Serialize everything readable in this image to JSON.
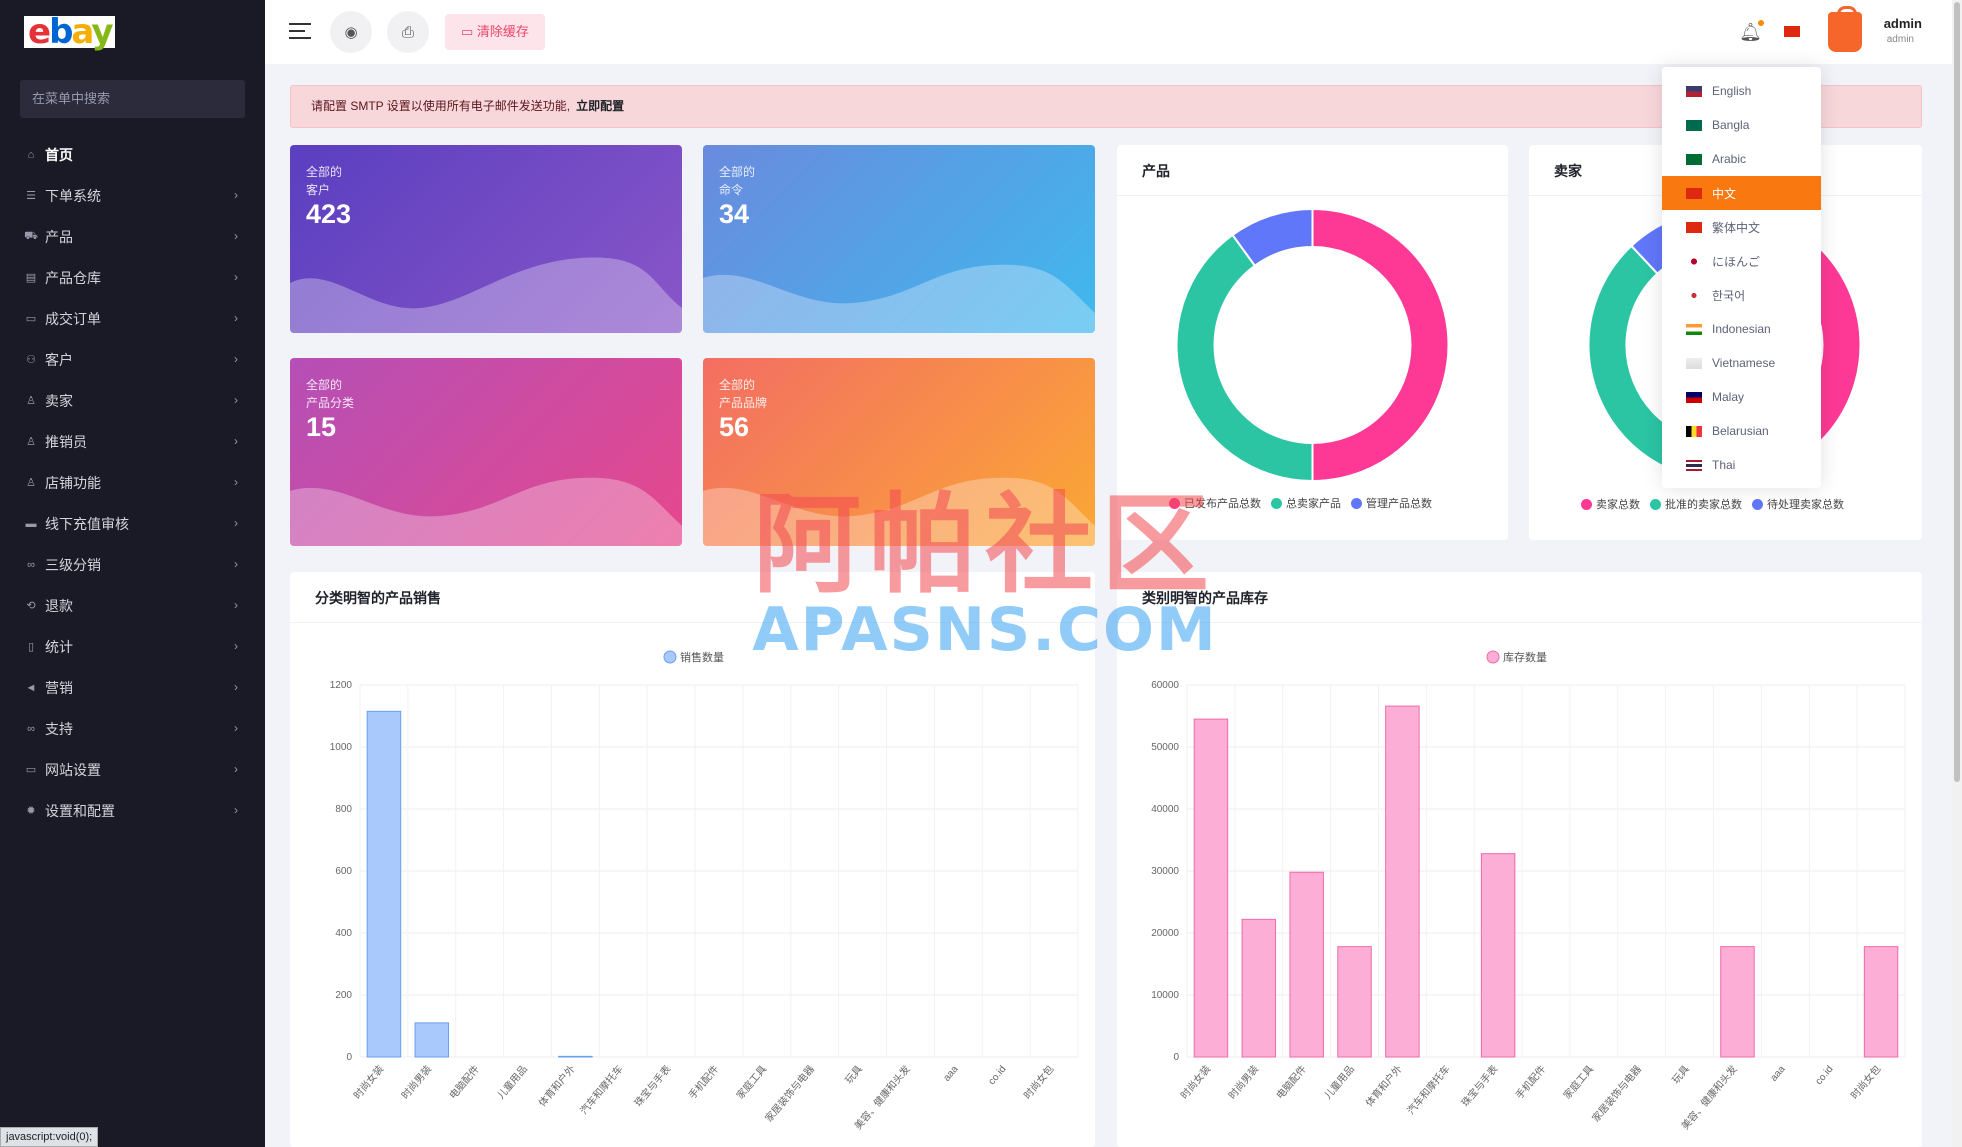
{
  "brand": {
    "logo_letters": [
      "e",
      "b",
      "a",
      "y"
    ]
  },
  "sidebar": {
    "search_placeholder": "在菜单中搜索",
    "items": [
      {
        "label": "首页",
        "icon": "home-icon"
      },
      {
        "label": "下单系统",
        "icon": "list-icon"
      },
      {
        "label": "产品",
        "icon": "cart-icon"
      },
      {
        "label": "产品仓库",
        "icon": "warehouse-icon"
      },
      {
        "label": "成交订单",
        "icon": "ticket-icon"
      },
      {
        "label": "客户",
        "icon": "users-icon"
      },
      {
        "label": "卖家",
        "icon": "user-icon"
      },
      {
        "label": "推销员",
        "icon": "user-icon"
      },
      {
        "label": "店铺功能",
        "icon": "user-icon"
      },
      {
        "label": "线下充值审核",
        "icon": "card-icon"
      },
      {
        "label": "三级分销",
        "icon": "link-icon"
      },
      {
        "label": "退款",
        "icon": "refund-icon"
      },
      {
        "label": "统计",
        "icon": "file-icon"
      },
      {
        "label": "营销",
        "icon": "megaphone-icon"
      },
      {
        "label": "支持",
        "icon": "link-icon"
      },
      {
        "label": "网站设置",
        "icon": "monitor-icon"
      },
      {
        "label": "设置和配置",
        "icon": "gear-icon"
      }
    ]
  },
  "statusbar": {
    "text": "javascript:void(0);"
  },
  "topbar": {
    "clear_cache": "清除缓存",
    "user_name": "admin",
    "user_role": "admin"
  },
  "alert": {
    "text": "请配置 SMTP 设置以使用所有电子邮件发送功能,",
    "link": "立即配置"
  },
  "stats": [
    {
      "line1": "全部的",
      "line2": "客户",
      "value": "423"
    },
    {
      "line1": "全部的",
      "line2": "命令",
      "value": "34"
    },
    {
      "line1": "全部的",
      "line2": "产品分类",
      "value": "15"
    },
    {
      "line1": "全部的",
      "line2": "产品品牌",
      "value": "56"
    }
  ],
  "products_card": {
    "title": "产品",
    "legend": [
      "已发布产品总数",
      "总卖家产品",
      "管理产品总数"
    ]
  },
  "sellers_card": {
    "title": "卖家",
    "legend": [
      "卖家总数",
      "批准的卖家总数",
      "待处理卖家总数"
    ]
  },
  "sales_card": {
    "title": "分类明智的产品销售"
  },
  "stock_card": {
    "title": "类别明智的产品库存"
  },
  "languages": {
    "items": [
      "English",
      "Bangla",
      "Arabic",
      "中文",
      "繁体中文",
      "にほんご",
      "한국어",
      "Indonesian",
      "Vietnamese",
      "Malay",
      "Belarusian",
      "Thai"
    ],
    "active": 3
  },
  "watermark": {
    "line1": "阿帕社区",
    "line2": "APASNS.COM"
  },
  "colors": {
    "pink": "#fd3995",
    "teal": "#2bc5a4",
    "blue": "#6177f9",
    "sales_bar": "#a9c8fb",
    "stock_bar": "#fcaed6"
  },
  "chart_data": [
    {
      "type": "pie",
      "title": "产品",
      "labels": [
        "已发布产品总数",
        "总卖家产品",
        "管理产品总数"
      ],
      "values": [
        50,
        40,
        10
      ]
    },
    {
      "type": "pie",
      "title": "卖家",
      "labels": [
        "卖家总数",
        "批准的卖家总数",
        "待处理卖家总数"
      ],
      "values": [
        50,
        38,
        12
      ]
    },
    {
      "type": "bar",
      "title": "分类明智的产品销售",
      "categories": [
        "时尚女装",
        "时尚男装",
        "电脑配件",
        "儿童用品",
        "体育和户外",
        "汽车和摩托车",
        "珠宝与手表",
        "手机配件",
        "家庭工具",
        "家居装饰与电器",
        "玩具",
        "美容、健康和头发",
        "aaa",
        "co.id",
        "时尚女包"
      ],
      "series": [
        {
          "name": "销售数量",
          "values": [
            1115,
            110,
            0,
            0,
            2,
            0,
            0,
            0,
            0,
            0,
            0,
            0,
            0,
            0,
            0
          ]
        }
      ],
      "ylim": [
        0,
        1200
      ],
      "yticks": [
        0,
        200,
        400,
        600,
        800,
        1000,
        1200
      ]
    },
    {
      "type": "bar",
      "title": "类别明智的产品库存",
      "categories": [
        "时尚女装",
        "时尚男装",
        "电脑配件",
        "儿童用品",
        "体育和户外",
        "汽车和摩托车",
        "珠宝与手表",
        "手机配件",
        "家庭工具",
        "家居装饰与电器",
        "玩具",
        "美容、健康和头发",
        "aaa",
        "co.id",
        "时尚女包"
      ],
      "series": [
        {
          "name": "库存数量",
          "values": [
            54500,
            22200,
            29800,
            17800,
            56600,
            0,
            32800,
            0,
            0,
            0,
            0,
            17800,
            0,
            0,
            17800
          ]
        }
      ],
      "ylim": [
        0,
        60000
      ],
      "yticks": [
        0,
        10000,
        20000,
        30000,
        40000,
        50000,
        60000
      ]
    }
  ]
}
